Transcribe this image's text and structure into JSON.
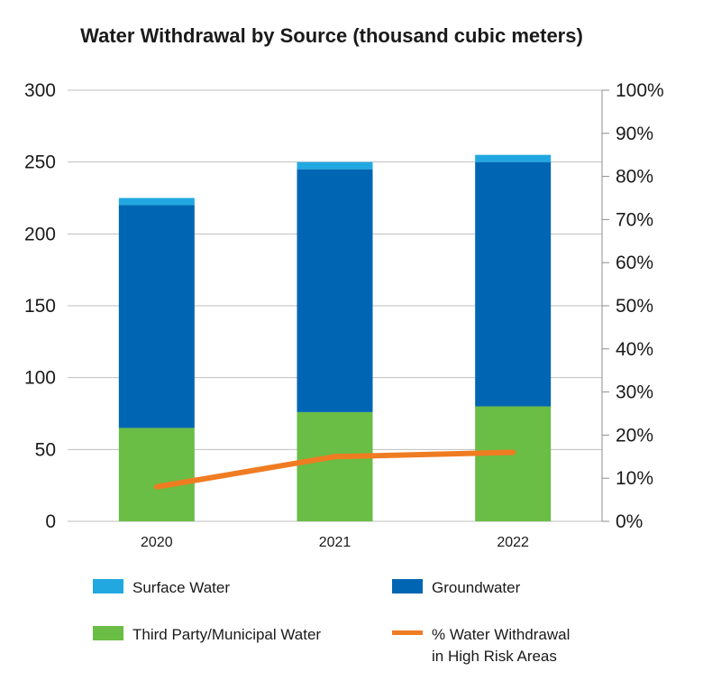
{
  "chart_data": {
    "type": "bar",
    "stacked": true,
    "title": "Water Withdrawal by Source (thousand cubic meters)",
    "categories": [
      "2020",
      "2021",
      "2022"
    ],
    "ylim": [
      0,
      300
    ],
    "yticks": [
      "0",
      "50",
      "100",
      "150",
      "200",
      "250",
      "300"
    ],
    "y2lim": [
      0,
      100
    ],
    "y2ticks": [
      "0%",
      "10%",
      "20%",
      "30%",
      "40%",
      "50%",
      "60%",
      "70%",
      "80%",
      "90%",
      "100%"
    ],
    "grid": true,
    "legend_position": "bottom",
    "series": [
      {
        "name": "Third Party/Municipal Water",
        "values": [
          65,
          76,
          80
        ],
        "color": "#6abd45"
      },
      {
        "name": "Groundwater",
        "values": [
          155,
          169,
          170
        ],
        "color": "#0066b3"
      },
      {
        "name": "Surface Water",
        "values": [
          5,
          5,
          5
        ],
        "color": "#22a8e0"
      }
    ],
    "line_series": {
      "name": "% Water Withdrawal in High Risk Areas",
      "name_lines": [
        "% Water Withdrawal",
        "in High Risk Areas"
      ],
      "axis": "y2",
      "values": [
        8,
        15,
        16
      ],
      "color": "#f07c22"
    }
  }
}
